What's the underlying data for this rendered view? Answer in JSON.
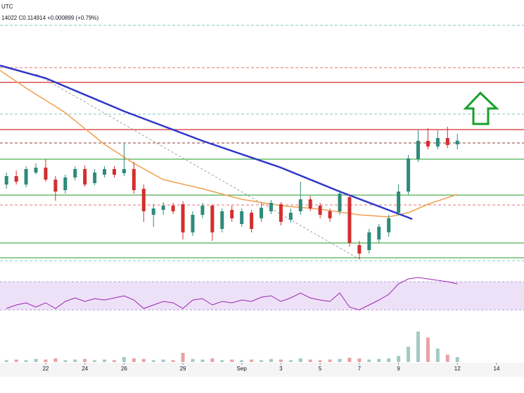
{
  "chart_data": {
    "type": "candlestick",
    "timezone": "UTC",
    "header": "14022 C0.114914 +0.000899 (+0.79%)",
    "x": [
      20,
      20.5,
      21,
      21.5,
      22,
      22.5,
      23,
      23.5,
      24,
      24.5,
      25,
      25.5,
      26,
      26.5,
      27,
      27.5,
      28,
      28.5,
      29,
      29.5,
      30,
      30.5,
      31,
      31.5,
      32,
      32.5,
      33,
      33.5,
      34,
      34.5,
      35,
      35.5,
      36,
      36.5,
      37,
      37.5,
      38,
      38.5,
      39,
      39.5,
      40,
      40.5,
      41,
      41.5,
      42,
      42.5,
      43
    ],
    "open": [
      0.1118,
      0.1124,
      0.1118,
      0.11265,
      0.113,
      0.11215,
      0.1114,
      0.1123,
      0.1129,
      0.1119,
      0.1125,
      0.1129,
      0.1126,
      0.1129,
      0.1115,
      0.10965,
      0.11,
      0.1103,
      0.1104,
      0.1084,
      0.10965,
      0.1103,
      0.10865,
      0.11,
      0.109,
      0.1098,
      0.1094,
      0.1099,
      0.1104,
      0.1093,
      0.1099,
      0.11075,
      0.1103,
      0.1099,
      0.1099,
      0.1109,
      0.1075,
      0.10715,
      0.1079,
      0.1084,
      0.1098,
      0.1113,
      0.1136,
      0.1149,
      0.1145,
      0.1151,
      0.11465
    ],
    "high": [
      0.11265,
      0.1128,
      0.1131,
      0.1133,
      0.1136,
      0.1124,
      0.1125,
      0.1131,
      0.11315,
      0.1129,
      0.1131,
      0.1131,
      0.1147,
      0.1134,
      0.1118,
      0.1104,
      0.11055,
      0.1105,
      0.1106,
      0.1099,
      0.1105,
      0.1104,
      0.1101,
      0.1103,
      0.1101,
      0.11,
      0.1105,
      0.1107,
      0.11055,
      0.1101,
      0.112,
      0.111,
      0.1105,
      0.1101,
      0.1114,
      0.1111,
      0.1078,
      0.10865,
      0.109,
      0.10965,
      0.1118,
      0.1139,
      0.11565,
      0.1158,
      0.11565,
      0.1159,
      0.1154
    ],
    "low": [
      0.1115,
      0.1118,
      0.1116,
      0.1125,
      0.112,
      0.11065,
      0.11115,
      0.1121,
      0.11165,
      0.11175,
      0.1123,
      0.1123,
      0.1124,
      0.11115,
      0.10915,
      0.1088,
      0.10965,
      0.1097,
      0.1079,
      0.10815,
      0.1094,
      0.1078,
      0.1084,
      0.10915,
      0.1088,
      0.1084,
      0.10915,
      0.1097,
      0.1089,
      0.1091,
      0.10965,
      0.1099,
      0.1094,
      0.10915,
      0.10965,
      0.1074,
      0.1065,
      0.1069,
      0.10765,
      0.1081,
      0.1096,
      0.1111,
      0.1134,
      0.1143,
      0.1143,
      0.1144,
      0.1143
    ],
    "close": [
      0.1124,
      0.112,
      0.1129,
      0.113,
      0.11215,
      0.1113,
      0.1123,
      0.1129,
      0.1118,
      0.11265,
      0.1129,
      0.1125,
      0.1129,
      0.1114,
      0.1099,
      0.1101,
      0.1103,
      0.1099,
      0.1084,
      0.10965,
      0.1103,
      0.1084,
      0.1099,
      0.1094,
      0.1099,
      0.10865,
      0.11015,
      0.1105,
      0.10915,
      0.1098,
      0.11075,
      0.1101,
      0.10965,
      0.1094,
      0.11115,
      0.10765,
      0.1069,
      0.1084,
      0.1088,
      0.1094,
      0.1113,
      0.11365,
      0.1149,
      0.1145,
      0.1151,
      0.1146,
      0.114914
    ],
    "volume": [
      3,
      4,
      3,
      5,
      4,
      6,
      3,
      4,
      5,
      3,
      4,
      3,
      8,
      6,
      5,
      3,
      4,
      3,
      15,
      5,
      4,
      6,
      3,
      4,
      3,
      4,
      3,
      5,
      4,
      3,
      6,
      4,
      3,
      4,
      5,
      7,
      6,
      4,
      5,
      6,
      10,
      25,
      50,
      40,
      22,
      12,
      8
    ],
    "rsi": [
      32,
      37,
      40,
      34,
      40,
      32,
      42,
      47,
      42,
      46,
      44,
      47,
      50,
      44,
      32,
      37,
      42,
      40,
      32,
      44,
      46,
      37,
      42,
      40,
      44,
      42,
      48,
      50,
      42,
      47,
      54,
      47,
      44,
      42,
      54,
      34,
      30,
      37,
      44,
      52,
      67,
      74,
      76,
      74,
      72,
      70,
      67
    ],
    "up_color": "#2e8b7a",
    "down_color": "#d32f2f",
    "xlim": [
      19.67,
      46.4
    ],
    "ylim": [
      0.1059,
      0.1249
    ],
    "rsi_ylim": [
      20,
      80
    ],
    "rsi_band": [
      30,
      70
    ],
    "rsi_color": "#9c27b0",
    "volume_ylim": [
      0,
      60
    ],
    "xticks": [
      22,
      24,
      26,
      29,
      {
        "value": 32,
        "label": "Sep"
      },
      {
        "value": 34,
        "label": "3"
      },
      {
        "value": 36,
        "label": "5"
      },
      {
        "value": 38,
        "label": "7"
      },
      {
        "value": 40,
        "label": "9"
      },
      {
        "value": 43,
        "label": "12"
      },
      {
        "value": 45,
        "label": "14"
      }
    ],
    "levels": [
      {
        "value": 0.1231,
        "color": "#80cbc4",
        "dash": true
      },
      {
        "value": 0.1201,
        "color": "#e57373",
        "dash": true
      },
      {
        "value": 0.11905,
        "color": "#d32f2f",
        "dash": false
      },
      {
        "value": 0.1168,
        "color": "#80cbc4",
        "dash": true
      },
      {
        "value": 0.1157,
        "color": "#d32f2f",
        "dash": false
      },
      {
        "value": 0.11475,
        "color": "#8d3b3b",
        "dash": true
      },
      {
        "value": 0.1136,
        "color": "#4caf50",
        "dash": false
      },
      {
        "value": 0.11105,
        "color": "#4caf50",
        "dash": false
      },
      {
        "value": 0.11035,
        "color": "#e57373",
        "dash": true
      },
      {
        "value": 0.10765,
        "color": "#4caf50",
        "dash": false
      },
      {
        "value": 0.1066,
        "color": "#4caf50",
        "dash": false
      },
      {
        "value": 0.1064,
        "color": "#80cbc4",
        "dash": true
      }
    ],
    "overlays": [
      {
        "color": "#9e9e9e",
        "width": 1,
        "dash": true,
        "x": [
          21.5,
          38
        ],
        "values": [
          0.11965,
          0.1065
        ]
      },
      {
        "color": "#f0a050",
        "width": 1.5,
        "dash": false,
        "x": [
          19.67,
          21,
          23,
          25,
          26.5,
          28,
          30,
          32,
          34,
          36,
          38,
          39.5,
          40.5,
          41.5,
          43
        ],
        "values": [
          0.1199,
          0.11865,
          0.1169,
          0.11465,
          0.1133,
          0.11215,
          0.1115,
          0.11075,
          0.1103,
          0.11005,
          0.10965,
          0.1095,
          0.1098,
          0.1104,
          0.1111
        ]
      },
      {
        "color": "#2f36c8",
        "width": 2.5,
        "dash": false,
        "x": [
          19.67,
          22,
          26,
          30,
          34,
          37,
          39,
          40.7
        ],
        "values": [
          0.12025,
          0.11935,
          0.117,
          0.1149,
          0.113,
          0.1113,
          0.11025,
          0.10935
        ]
      }
    ]
  }
}
